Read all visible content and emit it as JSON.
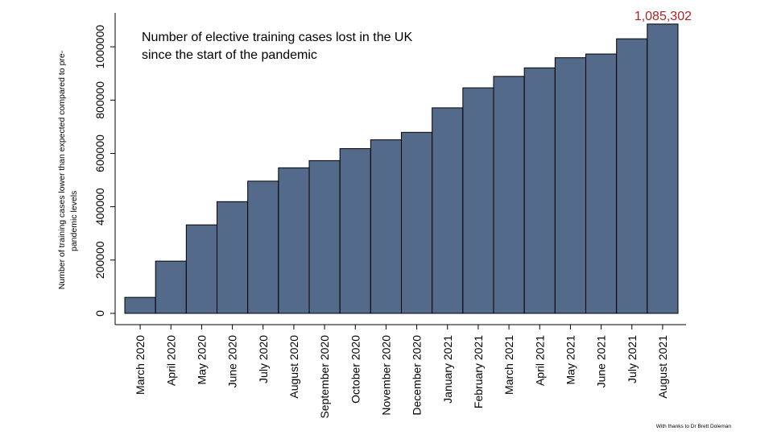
{
  "chart_data": {
    "type": "bar",
    "title_lines": [
      "Number of elective training cases lost in the UK",
      "since the start of the pandemic"
    ],
    "ylabel_lines": [
      "Number of training cases lower than expected compared to pre-",
      "pandemic levels"
    ],
    "categories": [
      "March 2020",
      "April 2020",
      "May 2020",
      "June 2020",
      "July 2020",
      "August 2020",
      "September 2020",
      "October 2020",
      "November 2020",
      "December 2020",
      "January 2021",
      "February 2021",
      "March 2021",
      "April 2021",
      "May 2021",
      "June 2021",
      "July 2021",
      "August 2021"
    ],
    "values": [
      60000,
      196000,
      332000,
      419000,
      496000,
      546000,
      573000,
      618000,
      651000,
      679000,
      771000,
      846000,
      889000,
      921000,
      959000,
      973000,
      1030000,
      1085302
    ],
    "yticks": [
      0,
      200000,
      400000,
      600000,
      800000,
      1000000
    ],
    "ylim": [
      0,
      1100000
    ],
    "grid": false,
    "annotation": {
      "text": "1,085,302",
      "color": "#b22222"
    },
    "bar_color": "#546a8a",
    "credit": "With thanks to Dr Brett Doleman"
  }
}
